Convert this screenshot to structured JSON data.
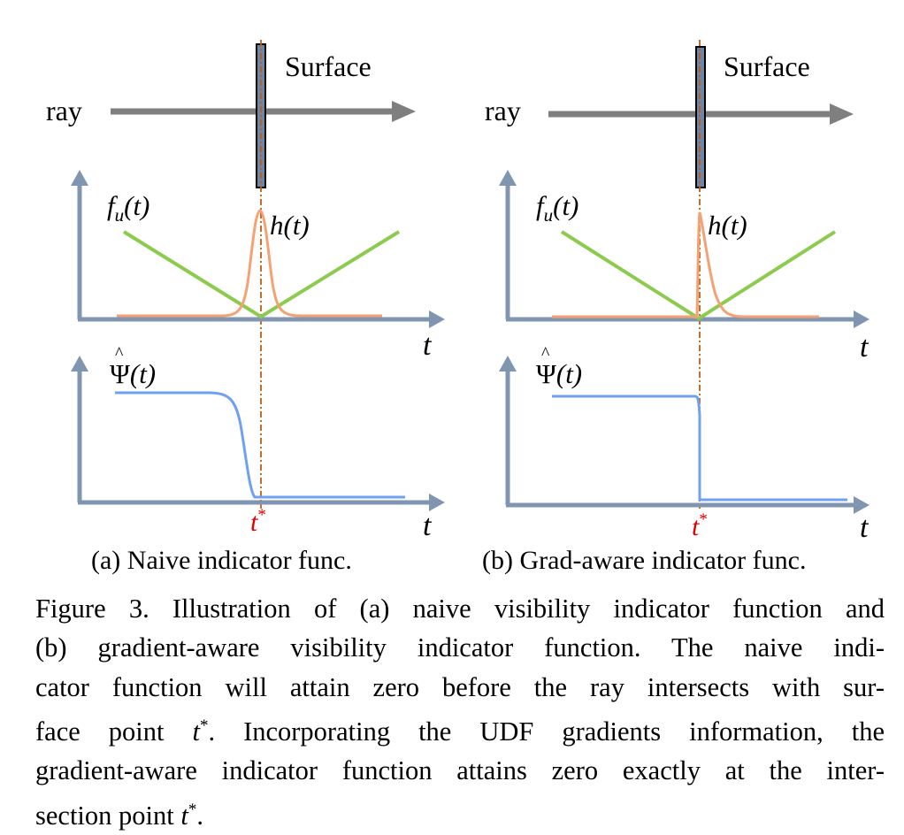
{
  "panels": [
    {
      "surface_label": "Surface",
      "ray_label": "ray",
      "top_plot": {
        "f_label": "f",
        "f_sub": "u",
        "f_arg": "(t)",
        "h_label": "h(t)",
        "axis_t": "t"
      },
      "bottom_plot": {
        "psi_label": "Ψ",
        "psi_arg": "(t)",
        "axis_t": "t",
        "t_star": "t",
        "t_star_sup": "*"
      },
      "subcaption": "(a) Naive indicator func."
    },
    {
      "surface_label": "Surface",
      "ray_label": "ray",
      "top_plot": {
        "f_label": "f",
        "f_sub": "u",
        "f_arg": "(t)",
        "h_label": "h(t)",
        "axis_t": "t"
      },
      "bottom_plot": {
        "psi_label": "Ψ",
        "psi_arg": "(t)",
        "axis_t": "t",
        "t_star": "t",
        "t_star_sup": "*"
      },
      "subcaption": "(b) Grad-aware indicator func."
    }
  ],
  "caption": {
    "lines": [
      "Figure 3. Illustration of (a) naive visibility indicator function and",
      "(b) gradient-aware visibility indicator function.  The naive indi-",
      "cator function will attain zero before the ray intersects with sur-",
      "face point t*.  Incorporating the UDF gradients information, the",
      "gradient-aware indicator function attains zero exactly at the inter-",
      "section point t*."
    ]
  },
  "colors": {
    "axis": "#8095B0",
    "ray": "#7F7F7F",
    "surface_fill": "#6E85A5",
    "green": "#8CCB4E",
    "orange": "#F4A274",
    "blue": "#6FA0F2",
    "dashdot": "#C55A11",
    "t_star": "#E00000"
  },
  "icons": [
    "ray-arrow-icon",
    "surface-plane-icon"
  ]
}
